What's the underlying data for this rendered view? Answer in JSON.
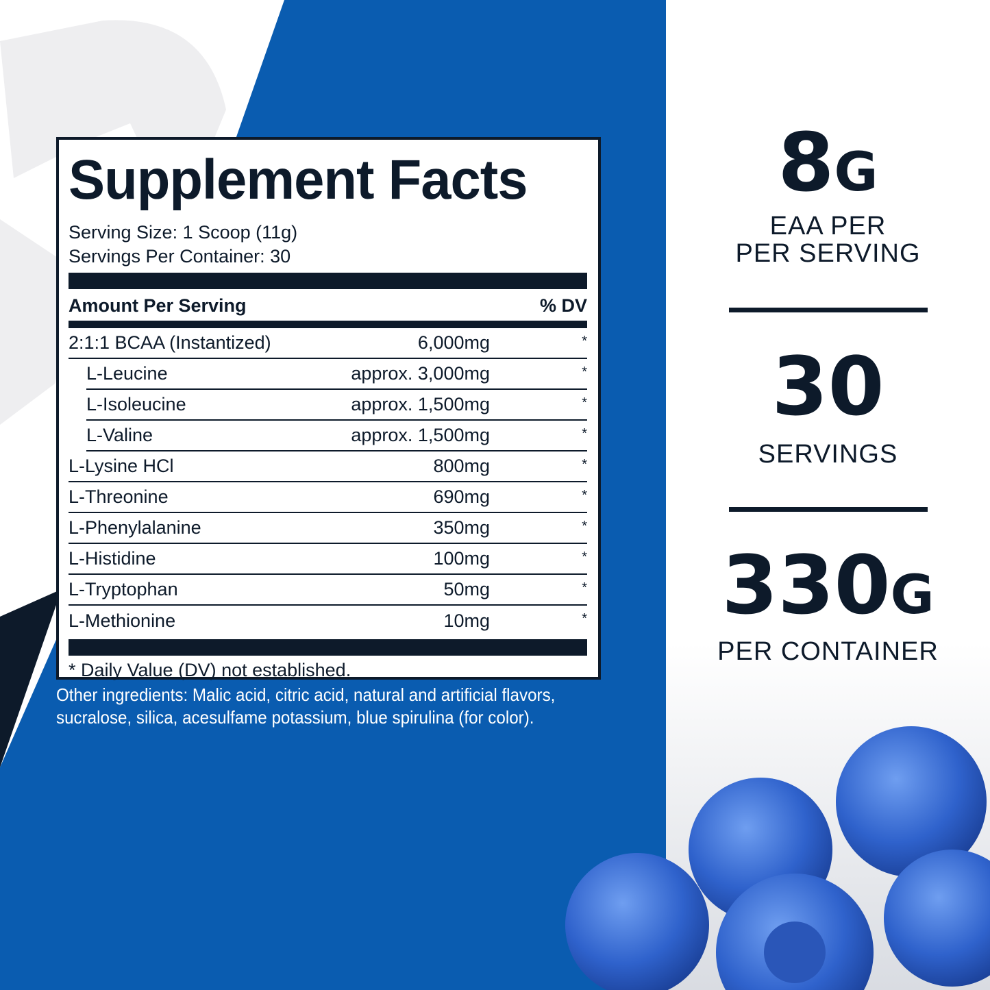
{
  "colors": {
    "brand_blue": "#0a5cb0",
    "navy": "#0d1a2a",
    "logo_gray": "#eeeef0"
  },
  "facts": {
    "title": "Supplement Facts",
    "serving_size": "Serving Size: 1 Scoop (11g)",
    "servings_per_container": "Servings Per Container: 30",
    "amount_header": "Amount Per Serving",
    "dv_header": "% DV",
    "rows": [
      {
        "name": "2:1:1 BCAA (Instantized)",
        "amount": "6,000mg",
        "dv": "*"
      },
      {
        "name": "L-Leucine",
        "amount": "approx. 3,000mg",
        "dv": "*"
      },
      {
        "name": "L-Isoleucine",
        "amount": "approx. 1,500mg",
        "dv": "*"
      },
      {
        "name": "L-Valine",
        "amount": "approx. 1,500mg",
        "dv": "*"
      },
      {
        "name": "L-Lysine HCl",
        "amount": "800mg",
        "dv": "*"
      },
      {
        "name": "L-Threonine",
        "amount": "690mg",
        "dv": "*"
      },
      {
        "name": "L-Phenylalanine",
        "amount": "350mg",
        "dv": "*"
      },
      {
        "name": "L-Histidine",
        "amount": "100mg",
        "dv": "*"
      },
      {
        "name": "L-Tryptophan",
        "amount": "50mg",
        "dv": "*"
      },
      {
        "name": "L-Methionine",
        "amount": "10mg",
        "dv": "*"
      }
    ],
    "footnote": "* Daily Value (DV) not established."
  },
  "other_ingredients": "Other ingredients: Malic acid, citric acid, natural and artificial flavors, sucralose, silica, acesulfame potassium, blue spirulina (for color).",
  "stats": [
    {
      "value": "8",
      "unit": "G",
      "label1": "EAA PER",
      "label2": "PER SERVING"
    },
    {
      "value": "30",
      "unit": "",
      "label1": "SERVINGS",
      "label2": ""
    },
    {
      "value": "330",
      "unit": "G",
      "label1": "PER CONTAINER",
      "label2": ""
    }
  ]
}
